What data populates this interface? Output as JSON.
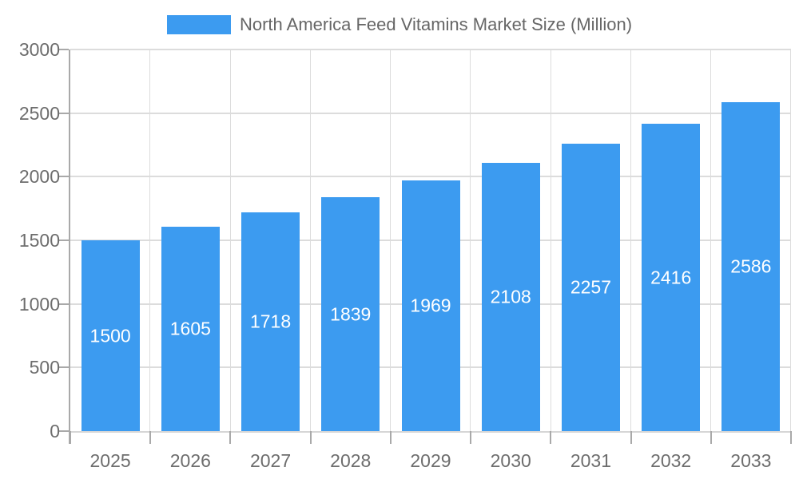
{
  "legend": {
    "label": "North America Feed Vitamins Market Size (Million)"
  },
  "chart_data": {
    "type": "bar",
    "title": "North America Feed Vitamins Market Size (Million)",
    "categories": [
      "2025",
      "2026",
      "2027",
      "2028",
      "2029",
      "2030",
      "2031",
      "2032",
      "2033"
    ],
    "values": [
      1500,
      1605,
      1718,
      1839,
      1969,
      2108,
      2257,
      2416,
      2586
    ],
    "xlabel": "",
    "ylabel": "",
    "ylim": [
      0,
      3000
    ],
    "ytick_step": 500,
    "grid": true,
    "legend_position": "top",
    "value_labels": "inside-center"
  },
  "colors": {
    "bar": "#3c9bf0",
    "gridline": "#dcdcdc",
    "axis": "#a9a9a9",
    "tick_text": "#6d6d6d",
    "legend_text": "#666666",
    "value_label_text": "#ffffff",
    "background": "#ffffff"
  }
}
